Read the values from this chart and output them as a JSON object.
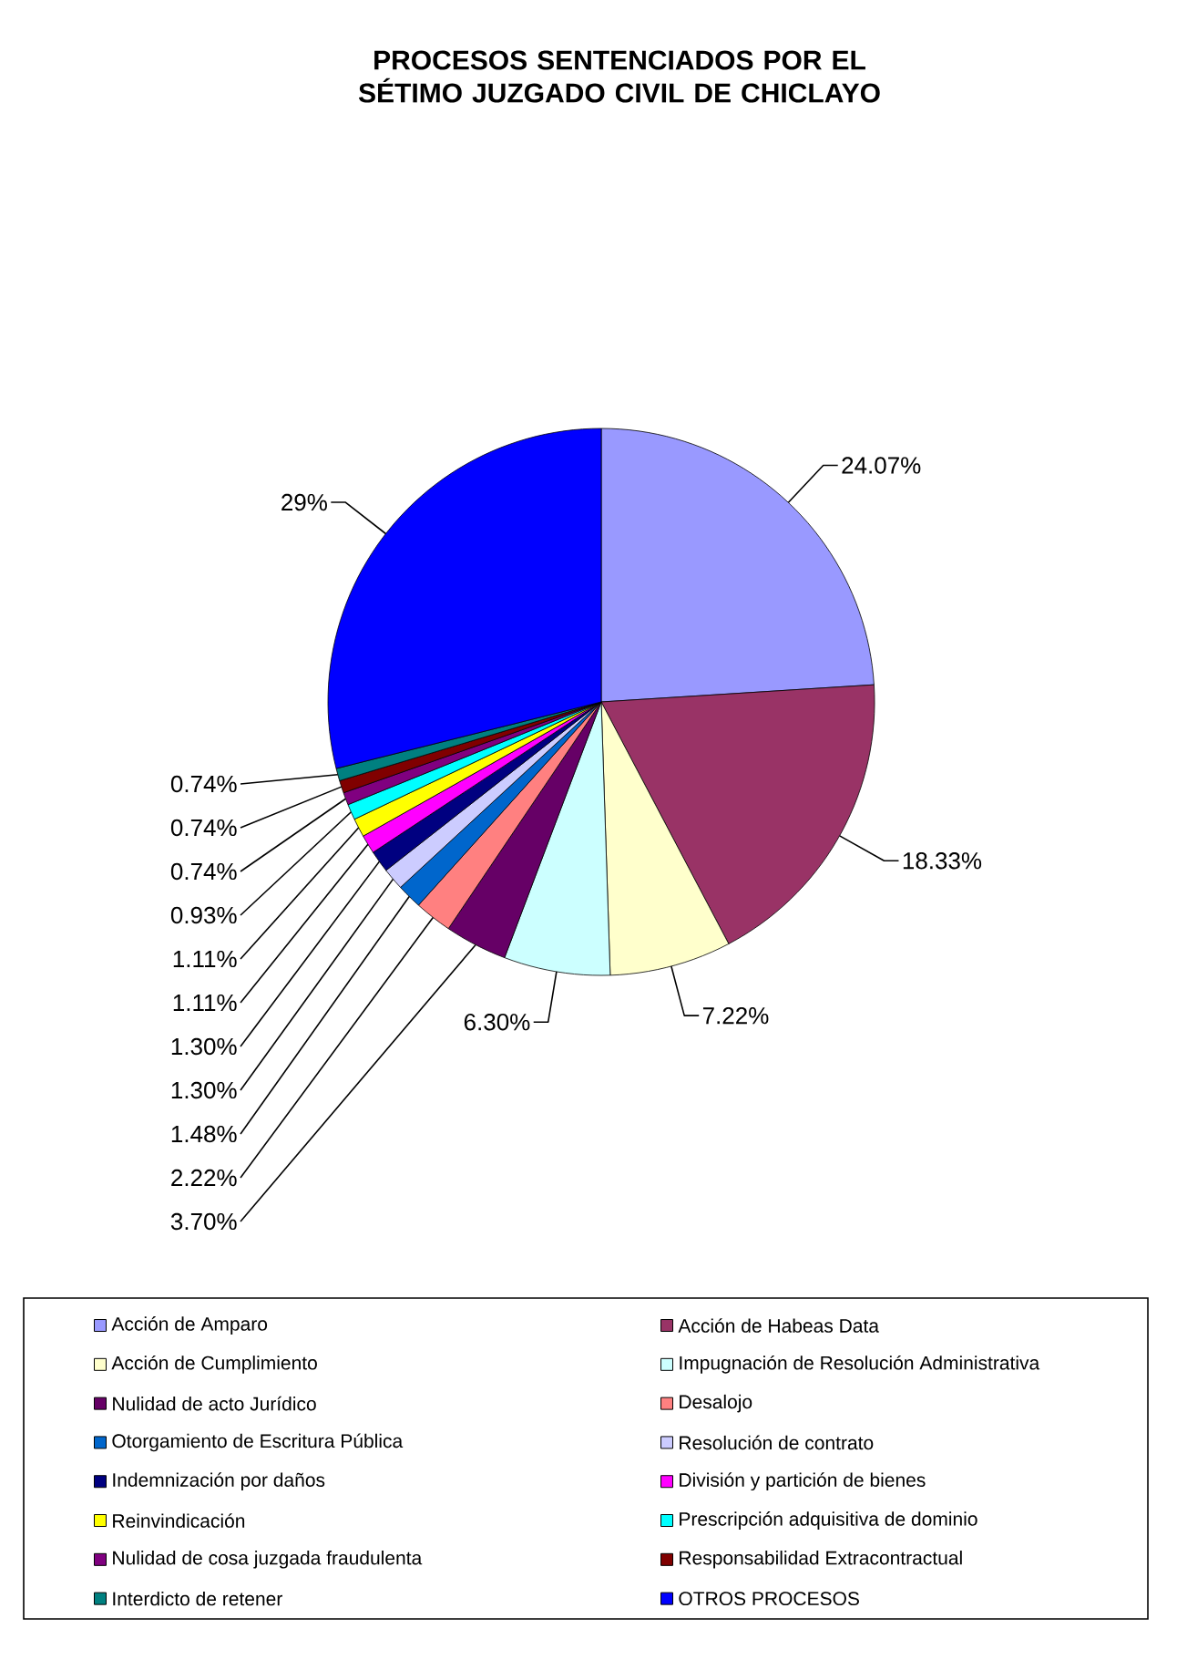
{
  "chart_data": {
    "type": "pie",
    "title": "PROCESOS SENTENCIADOS POR EL SÉTIMO JUZGADO CIVIL DE CHICLAYO",
    "categories": [
      "Acción de Amparo",
      "Acción de Habeas Data",
      "Acción de Cumplimiento",
      "Impugnación de Resolución Administrativa",
      "Nulidad de acto Jurídico",
      "Desalojo",
      "Otorgamiento de Escritura Pública",
      "Resolución de contrato",
      "Indemnización por daños",
      "División y partición de bienes",
      "Reinvindicación",
      "Prescripción adquisitiva de dominio",
      "Nulidad de cosa juzgada fraudulenta",
      "Responsabilidad Extracontractual",
      "Interdicto de retener",
      "OTROS PROCESOS"
    ],
    "values": [
      24.07,
      18.33,
      7.22,
      6.3,
      3.7,
      2.22,
      1.48,
      1.3,
      1.3,
      1.11,
      1.11,
      0.93,
      0.74,
      0.74,
      0.74,
      29
    ],
    "value_labels": [
      "24.07%",
      "18.33%",
      "7.22%",
      "6.30%",
      "3.70%",
      "2.22%",
      "1.48%",
      "1.30%",
      "1.30%",
      "1.11%",
      "1.11%",
      "0.93%",
      "0.74%",
      "0.74%",
      "0.74%",
      "29%"
    ],
    "colors": [
      "#9999ff",
      "#993366",
      "#ffffcc",
      "#ccffff",
      "#660066",
      "#ff8080",
      "#0066cc",
      "#ccccff",
      "#000080",
      "#ff00ff",
      "#ffff00",
      "#00ffff",
      "#800080",
      "#800000",
      "#008080",
      "#0000ff"
    ],
    "legend": "bottom"
  }
}
